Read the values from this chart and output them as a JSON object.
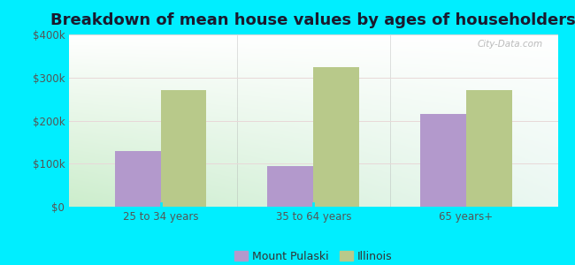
{
  "title": "Breakdown of mean house values by ages of householders",
  "categories": [
    "25 to 34 years",
    "35 to 64 years",
    "65 years+"
  ],
  "mount_pulaski_values": [
    130000,
    95000,
    215000
  ],
  "illinois_values": [
    270000,
    325000,
    270000
  ],
  "mount_pulaski_color": "#b399cc",
  "illinois_color": "#b8c98a",
  "ylim": [
    0,
    400000
  ],
  "yticks": [
    0,
    100000,
    200000,
    300000,
    400000
  ],
  "ytick_labels": [
    "$0",
    "$100k",
    "$200k",
    "$300k",
    "$400k"
  ],
  "background_color": "#00eeff",
  "legend_labels": [
    "Mount Pulaski",
    "Illinois"
  ],
  "bar_width": 0.3,
  "title_fontsize": 13,
  "watermark": "City-Data.com"
}
